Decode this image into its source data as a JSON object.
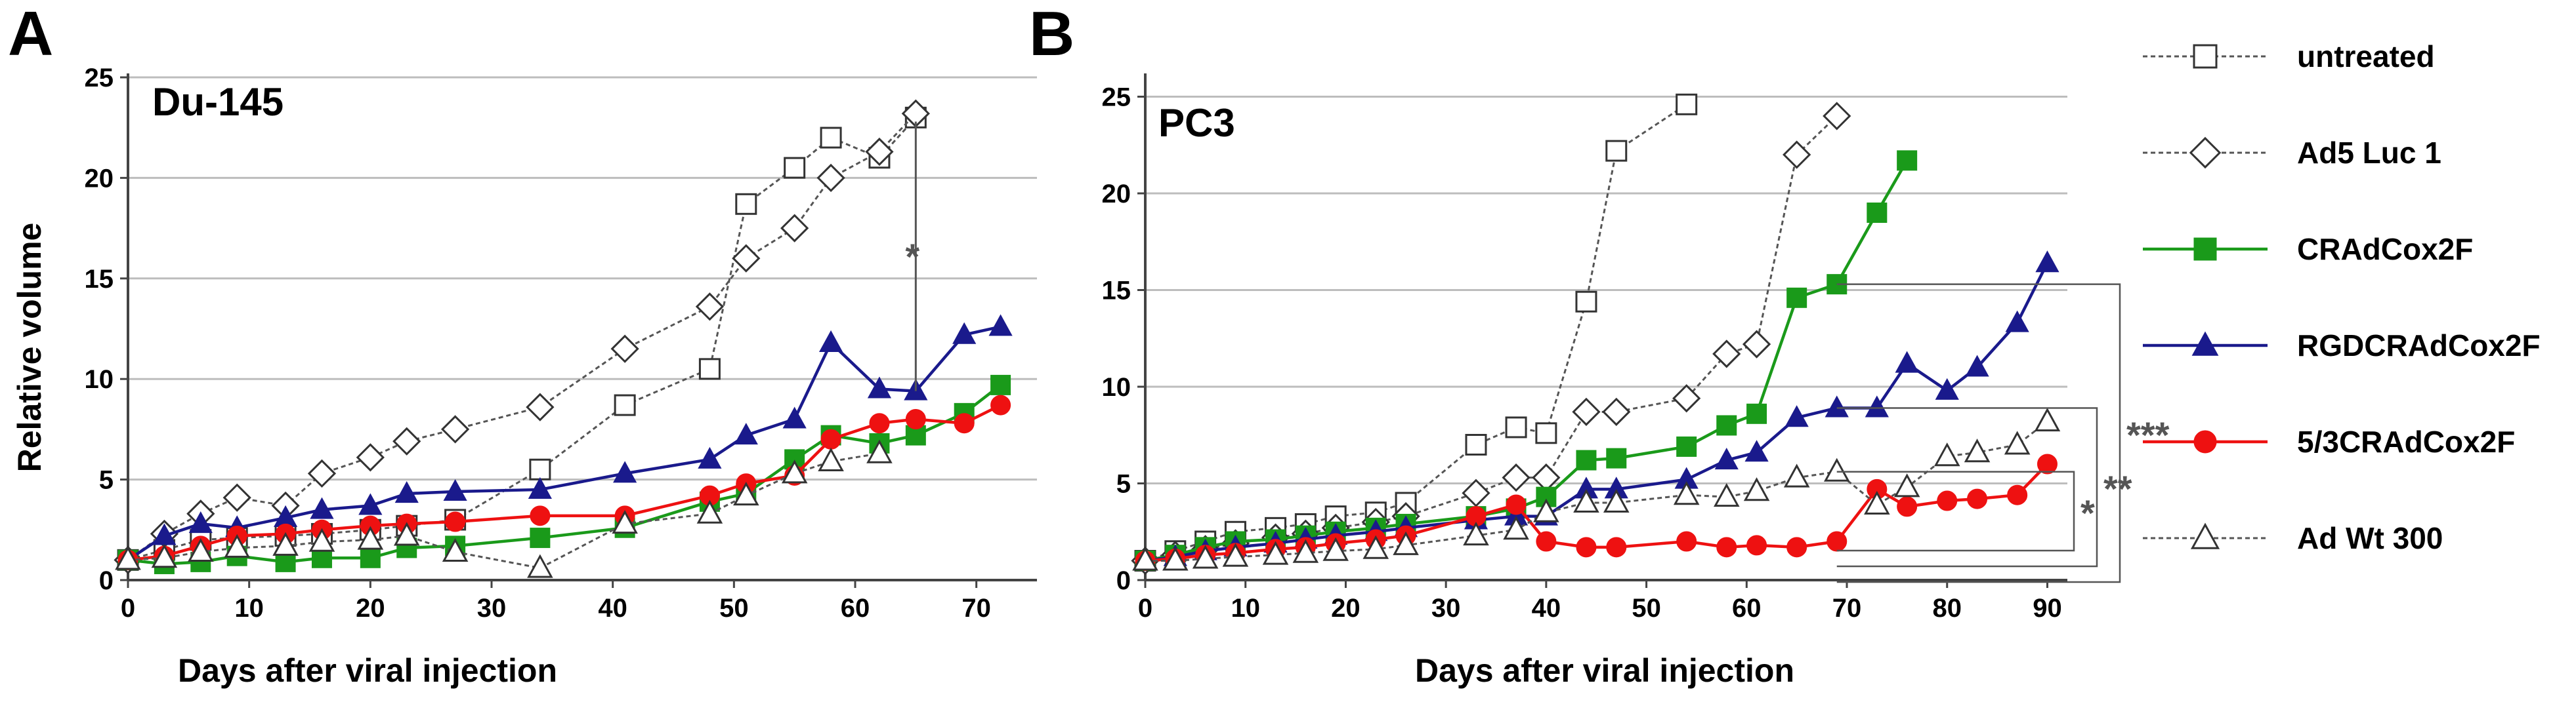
{
  "colors": {
    "untreated": "#555555",
    "ad5": "#555555",
    "cradcox2f": "#1a9a1a",
    "rgd": "#1a1a8c",
    "c53": "#ee1111",
    "adwt": "#555555",
    "grid": "#bdbdbd",
    "axis": "#444444"
  },
  "legend": [
    {
      "key": "untreated",
      "label": "untreated",
      "marker": "square-open",
      "dashed": true
    },
    {
      "key": "ad5",
      "label": "Ad5 Luc 1",
      "marker": "diamond-open",
      "dashed": true
    },
    {
      "key": "cradcox2f",
      "label": "CRAdCox2F",
      "marker": "square-filled",
      "dashed": false
    },
    {
      "key": "rgd",
      "label": "RGDCRAdCox2F",
      "marker": "triangle-filled",
      "dashed": false
    },
    {
      "key": "c53",
      "label": "5/3CRAdCox2F",
      "marker": "circle-filled",
      "dashed": false
    },
    {
      "key": "adwt",
      "label": "Ad Wt 300",
      "marker": "triangle-open",
      "dashed": true
    }
  ],
  "chart_data": [
    {
      "type": "line",
      "panel_label": "A",
      "title": "Du-145",
      "xlabel": "Days after viral injection",
      "ylabel": "Relative volume",
      "xlim": [
        0,
        75
      ],
      "ylim": [
        0,
        25
      ],
      "xticks": [
        0,
        10,
        20,
        30,
        40,
        50,
        60,
        70
      ],
      "yticks": [
        0,
        5,
        10,
        15,
        20,
        25
      ],
      "grid": "horizontal",
      "series": [
        {
          "key": "untreated",
          "name": "untreated",
          "x": [
            0,
            3,
            6,
            9,
            13,
            16,
            20,
            23,
            27,
            34,
            41,
            48,
            51,
            55,
            58,
            62,
            65
          ],
          "y": [
            1,
            1.5,
            2,
            2.1,
            2.2,
            2.3,
            2.5,
            2.7,
            3,
            5.5,
            8.7,
            10.5,
            18.7,
            20.5,
            22,
            21,
            23
          ]
        },
        {
          "key": "ad5",
          "name": "Ad5 Luc 1",
          "x": [
            0,
            3,
            6,
            9,
            13,
            16,
            20,
            23,
            27,
            34,
            41,
            48,
            51,
            55,
            58,
            62,
            65
          ],
          "y": [
            1,
            2.3,
            3.3,
            4.1,
            3.7,
            5.3,
            6.1,
            6.9,
            7.5,
            8.6,
            11.5,
            13.6,
            16,
            17.5,
            20,
            21.3,
            23.2
          ]
        },
        {
          "key": "cradcox2f",
          "name": "CRAdCox2F",
          "x": [
            0,
            3,
            6,
            9,
            13,
            16,
            20,
            23,
            27,
            34,
            41,
            48,
            51,
            55,
            58,
            62,
            65,
            69,
            72
          ],
          "y": [
            1,
            0.8,
            0.9,
            1.2,
            0.9,
            1.1,
            1.1,
            1.6,
            1.7,
            2.1,
            2.6,
            3.9,
            4.3,
            6,
            7.2,
            6.8,
            7.2,
            8.3,
            9.7
          ]
        },
        {
          "key": "rgd",
          "name": "RGDCRAdCox2F",
          "x": [
            0,
            3,
            6,
            9,
            13,
            16,
            20,
            23,
            27,
            34,
            41,
            48,
            51,
            55,
            58,
            62,
            65,
            69,
            72
          ],
          "y": [
            1,
            2.2,
            2.8,
            2.6,
            3.1,
            3.5,
            3.7,
            4.3,
            4.4,
            4.5,
            5.3,
            6,
            7.2,
            8,
            11.8,
            9.5,
            9.4,
            12.2,
            12.6
          ]
        },
        {
          "key": "c53",
          "name": "5/3CRAdCox2F",
          "x": [
            0,
            3,
            6,
            9,
            13,
            16,
            20,
            23,
            27,
            34,
            41,
            48,
            51,
            55,
            58,
            62,
            65,
            69,
            72
          ],
          "y": [
            1,
            1.2,
            1.7,
            2.2,
            2.3,
            2.5,
            2.7,
            2.8,
            2.9,
            3.2,
            3.2,
            4.2,
            4.8,
            5.2,
            7,
            7.8,
            8,
            7.8,
            8.7
          ]
        },
        {
          "key": "adwt",
          "name": "Ad Wt 300",
          "x": [
            0,
            3,
            6,
            9,
            13,
            16,
            20,
            23,
            27,
            34,
            41,
            48,
            51,
            55,
            58,
            62
          ],
          "y": [
            1,
            1.1,
            1.4,
            1.6,
            1.7,
            1.9,
            2,
            2.2,
            1.4,
            0.6,
            2.8,
            3.3,
            4.2,
            5.3,
            5.9,
            6.3
          ]
        }
      ],
      "annotations": [
        {
          "text": "*",
          "x": 65,
          "y1": 9.4,
          "y2": 22.8
        }
      ]
    },
    {
      "type": "line",
      "panel_label": "B",
      "title": "PC3",
      "xlabel": "Days after viral injection",
      "ylabel": "",
      "xlim": [
        0,
        92
      ],
      "ylim": [
        0,
        26
      ],
      "xticks": [
        0,
        10,
        20,
        30,
        40,
        50,
        60,
        70,
        80,
        90
      ],
      "yticks": [
        0,
        5,
        10,
        15,
        20,
        25
      ],
      "grid": "horizontal",
      "series": [
        {
          "key": "untreated",
          "name": "untreated",
          "x": [
            0,
            3,
            6,
            9,
            13,
            16,
            19,
            23,
            26,
            33,
            37,
            40,
            44,
            47,
            54
          ],
          "y": [
            1,
            1.5,
            2,
            2.5,
            2.7,
            2.9,
            3.3,
            3.5,
            4,
            7,
            7.9,
            7.6,
            14.4,
            22.2,
            24.6
          ]
        },
        {
          "key": "ad5",
          "name": "Ad5 Luc 1",
          "x": [
            0,
            3,
            6,
            9,
            13,
            16,
            19,
            23,
            26,
            33,
            37,
            40,
            44,
            47,
            54,
            58,
            61,
            65,
            69
          ],
          "y": [
            1,
            1.3,
            1.6,
            1.9,
            2.2,
            2.4,
            2.7,
            3,
            3.3,
            4.5,
            5.3,
            5.3,
            8.7,
            8.7,
            9.4,
            11.7,
            12.2,
            22,
            24
          ]
        },
        {
          "key": "cradcox2f",
          "name": "CRAdCox2F",
          "x": [
            0,
            3,
            6,
            9,
            13,
            16,
            19,
            23,
            26,
            33,
            37,
            40,
            44,
            47,
            54,
            58,
            61,
            65,
            69,
            73,
            76
          ],
          "y": [
            1,
            1.3,
            1.7,
            2,
            2.1,
            2.3,
            2.5,
            2.7,
            2.9,
            3.3,
            3.7,
            4.3,
            6.2,
            6.3,
            6.9,
            8,
            8.6,
            14.6,
            15.3,
            19,
            21.7
          ]
        },
        {
          "key": "rgd",
          "name": "RGDCRAdCox2F",
          "x": [
            0,
            3,
            6,
            9,
            13,
            16,
            19,
            23,
            26,
            33,
            37,
            40,
            44,
            47,
            54,
            58,
            61,
            65,
            69,
            73,
            76,
            80,
            83,
            87,
            90
          ],
          "y": [
            1,
            1.2,
            1.5,
            1.7,
            1.9,
            2.1,
            2.3,
            2.5,
            2.7,
            3.1,
            3.3,
            3.3,
            4.7,
            4.7,
            5.2,
            6.2,
            6.6,
            8.4,
            8.9,
            8.9,
            11.2,
            9.8,
            11,
            13.3,
            16.4
          ]
        },
        {
          "key": "c53",
          "name": "5/3CRAdCox2F",
          "x": [
            0,
            3,
            6,
            9,
            13,
            16,
            19,
            23,
            26,
            33,
            37,
            40,
            44,
            47,
            54,
            58,
            61,
            65,
            69,
            73,
            76,
            80,
            83,
            87,
            90
          ],
          "y": [
            1,
            1.1,
            1.3,
            1.4,
            1.6,
            1.7,
            1.9,
            2.1,
            2.3,
            3.3,
            3.9,
            2,
            1.7,
            1.7,
            2,
            1.7,
            1.8,
            1.7,
            2,
            4.7,
            3.8,
            4.1,
            4.2,
            4.4,
            6
          ]
        },
        {
          "key": "adwt",
          "name": "Ad Wt 300",
          "x": [
            0,
            3,
            6,
            9,
            13,
            16,
            19,
            23,
            26,
            33,
            37,
            40,
            44,
            47,
            54,
            58,
            61,
            65,
            69,
            73,
            76,
            80,
            83,
            87,
            90
          ],
          "y": [
            1,
            1,
            1.1,
            1.2,
            1.3,
            1.4,
            1.5,
            1.6,
            1.8,
            2.3,
            2.6,
            3.5,
            4,
            4,
            4.4,
            4.3,
            4.6,
            5.3,
            5.6,
            3.9,
            4.8,
            6.4,
            6.6,
            7,
            8.2
          ]
        }
      ],
      "annotations": [
        {
          "text": "***",
          "level": 1
        },
        {
          "text": "**",
          "level": 2
        },
        {
          "text": "*",
          "level": 3
        }
      ]
    }
  ]
}
